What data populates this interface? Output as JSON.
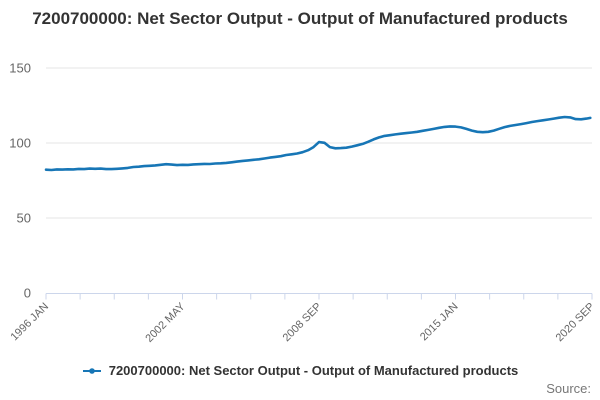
{
  "title": "7200700000: Net Sector Output - Output of Manufactured products",
  "legend": {
    "label": "7200700000: Net Sector Output - Output of Manufactured products"
  },
  "source": {
    "label": "Source:"
  },
  "colors": {
    "series_line": "#1776b6",
    "gridline": "#e6e6e6",
    "axis_line": "#ccd6eb",
    "tick_label": "#666666",
    "title_text": "#333333",
    "source_text": "#777777"
  },
  "chart_data": {
    "type": "line",
    "title": "7200700000: Net Sector Output - Output of Manufactured products",
    "xlabel": "",
    "ylabel": "",
    "ylim": [
      0,
      150
    ],
    "y_ticks": [
      0,
      50,
      100,
      150
    ],
    "xlim": [
      1996.0,
      2021.0
    ],
    "x_axis_tick_count": 17,
    "x_tick_labels": [
      {
        "label": "1996 JAN",
        "tick_index": 0
      },
      {
        "label": "2002 MAY",
        "tick_index": 4
      },
      {
        "label": "2008 SEP",
        "tick_index": 8
      },
      {
        "label": "2015 JAN",
        "tick_index": 12
      },
      {
        "label": "2020 SEP",
        "tick_index": 16
      }
    ],
    "grid": "horizontal",
    "legend_position": "bottom-center",
    "series": [
      {
        "name": "7200700000: Net Sector Output - Output of Manufactured products",
        "color": "#1776b6",
        "x": [
          1996,
          1996.25,
          1996.5,
          1996.75,
          1997,
          1997.25,
          1997.5,
          1997.75,
          1998,
          1998.25,
          1998.5,
          1998.75,
          1999,
          1999.25,
          1999.5,
          1999.75,
          2000,
          2000.25,
          2000.5,
          2000.75,
          2001,
          2001.25,
          2001.5,
          2001.75,
          2002,
          2002.25,
          2002.5,
          2002.75,
          2003,
          2003.25,
          2003.5,
          2003.75,
          2004,
          2004.25,
          2004.5,
          2004.75,
          2005,
          2005.25,
          2005.5,
          2005.75,
          2006,
          2006.25,
          2006.5,
          2006.75,
          2007,
          2007.25,
          2007.5,
          2007.75,
          2008,
          2008.25,
          2008.5,
          2008.75,
          2009,
          2009.25,
          2009.5,
          2009.75,
          2010,
          2010.25,
          2010.5,
          2010.75,
          2011,
          2011.25,
          2011.5,
          2011.75,
          2012,
          2012.25,
          2012.5,
          2012.75,
          2013,
          2013.25,
          2013.5,
          2013.75,
          2014,
          2014.25,
          2014.5,
          2014.75,
          2015,
          2015.25,
          2015.5,
          2015.75,
          2016,
          2016.25,
          2016.5,
          2016.75,
          2017,
          2017.25,
          2017.5,
          2017.75,
          2018,
          2018.25,
          2018.5,
          2018.75,
          2019,
          2019.25,
          2019.5,
          2019.75,
          2020,
          2020.25,
          2020.5,
          2020.75,
          2020.92
        ],
        "values": [
          82.2,
          82.0,
          82.4,
          82.3,
          82.5,
          82.4,
          82.7,
          82.6,
          82.9,
          82.8,
          82.9,
          82.6,
          82.6,
          82.8,
          83.1,
          83.4,
          84.0,
          84.2,
          84.6,
          84.8,
          85.1,
          85.5,
          85.9,
          85.6,
          85.3,
          85.5,
          85.4,
          85.7,
          85.9,
          86.1,
          86.0,
          86.3,
          86.5,
          86.7,
          87.1,
          87.6,
          88.1,
          88.4,
          88.8,
          89.1,
          89.7,
          90.3,
          90.7,
          91.2,
          92.0,
          92.5,
          93.0,
          93.9,
          95.2,
          97.3,
          100.6,
          100.1,
          97.3,
          96.5,
          96.6,
          96.9,
          97.6,
          98.5,
          99.4,
          100.8,
          102.4,
          103.7,
          104.7,
          105.2,
          105.7,
          106.2,
          106.6,
          107.0,
          107.5,
          108.1,
          108.7,
          109.4,
          110.1,
          110.7,
          111.1,
          110.9,
          110.4,
          109.4,
          108.3,
          107.5,
          107.2,
          107.5,
          108.3,
          109.5,
          110.6,
          111.4,
          112.0,
          112.6,
          113.3,
          114.0,
          114.6,
          115.1,
          115.7,
          116.3,
          116.9,
          117.3,
          117.1,
          115.9,
          115.8,
          116.3,
          116.7
        ]
      }
    ]
  }
}
